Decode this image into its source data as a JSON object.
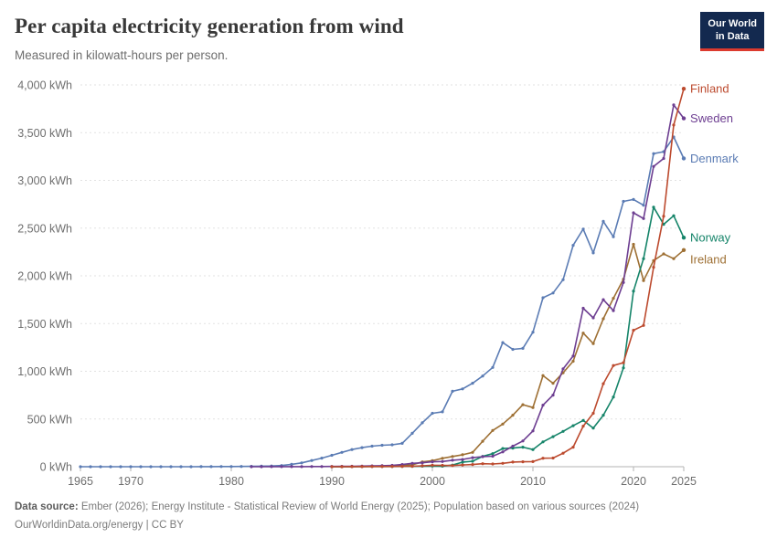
{
  "header": {
    "title": "Per capita electricity generation from wind",
    "subtitle": "Measured in kilowatt-hours per person.",
    "logo": {
      "line1": "Our World",
      "line2": "in Data"
    }
  },
  "footer": {
    "source_label": "Data source:",
    "source_text": " Ember (2026); Energy Institute - Statistical Review of World Energy (2025); Population based on various sources (2024)",
    "license_text": "OurWorldinData.org/energy | CC BY"
  },
  "colors": {
    "background": "#ffffff",
    "grid": "#e2e2e2",
    "axis": "#b3b3b3",
    "tick_label": "#6e6e6e",
    "title": "#383838",
    "logo_bg": "#13294f",
    "logo_stripe": "#dc3a2e"
  },
  "chart_data": {
    "type": "line",
    "title": "Per capita electricity generation from wind",
    "unit": "kWh per person",
    "legend_position": "end-of-line labels at right",
    "x_axis": {
      "range": [
        1965,
        2025
      ],
      "ticks": [
        1965,
        1970,
        1980,
        1990,
        2000,
        2010,
        2020,
        2025
      ]
    },
    "y_axis": {
      "range": [
        0,
        4000
      ],
      "ticks": [
        0,
        500,
        1000,
        1500,
        2000,
        2500,
        3000,
        3500,
        4000
      ],
      "tick_suffix": " kWh",
      "grid": "dashed"
    },
    "series": [
      {
        "name": "Finland",
        "color": "#bc4a2e",
        "label_offset_y": 0,
        "points": [
          [
            1990,
            0
          ],
          [
            1991,
            0
          ],
          [
            1992,
            1
          ],
          [
            1993,
            1
          ],
          [
            1994,
            2
          ],
          [
            1995,
            2
          ],
          [
            1996,
            3
          ],
          [
            1997,
            4
          ],
          [
            1998,
            5
          ],
          [
            1999,
            10
          ],
          [
            2000,
            15
          ],
          [
            2001,
            14
          ],
          [
            2002,
            12
          ],
          [
            2003,
            18
          ],
          [
            2004,
            23
          ],
          [
            2005,
            32
          ],
          [
            2006,
            29
          ],
          [
            2007,
            35
          ],
          [
            2008,
            49
          ],
          [
            2009,
            52
          ],
          [
            2010,
            54
          ],
          [
            2011,
            89
          ],
          [
            2012,
            91
          ],
          [
            2013,
            142
          ],
          [
            2014,
            205
          ],
          [
            2015,
            425
          ],
          [
            2016,
            560
          ],
          [
            2017,
            870
          ],
          [
            2018,
            1060
          ],
          [
            2019,
            1090
          ],
          [
            2020,
            1430
          ],
          [
            2021,
            1480
          ],
          [
            2022,
            2090
          ],
          [
            2023,
            2625
          ],
          [
            2024,
            3580
          ],
          [
            2025,
            3960
          ]
        ]
      },
      {
        "name": "Sweden",
        "color": "#6d3e91",
        "label_offset_y": 0,
        "points": [
          [
            1982,
            0
          ],
          [
            1983,
            0
          ],
          [
            1984,
            1
          ],
          [
            1985,
            1
          ],
          [
            1986,
            1
          ],
          [
            1987,
            1
          ],
          [
            1988,
            2
          ],
          [
            1989,
            2
          ],
          [
            1990,
            3
          ],
          [
            1991,
            4
          ],
          [
            1992,
            5
          ],
          [
            1993,
            7
          ],
          [
            1994,
            9
          ],
          [
            1995,
            11
          ],
          [
            1996,
            14
          ],
          [
            1997,
            23
          ],
          [
            1998,
            35
          ],
          [
            1999,
            41
          ],
          [
            2000,
            52
          ],
          [
            2001,
            55
          ],
          [
            2002,
            68
          ],
          [
            2003,
            76
          ],
          [
            2004,
            95
          ],
          [
            2005,
            105
          ],
          [
            2006,
            110
          ],
          [
            2007,
            155
          ],
          [
            2008,
            215
          ],
          [
            2009,
            270
          ],
          [
            2010,
            375
          ],
          [
            2011,
            645
          ],
          [
            2012,
            750
          ],
          [
            2013,
            1025
          ],
          [
            2014,
            1160
          ],
          [
            2015,
            1660
          ],
          [
            2016,
            1560
          ],
          [
            2017,
            1750
          ],
          [
            2018,
            1635
          ],
          [
            2019,
            1930
          ],
          [
            2020,
            2660
          ],
          [
            2021,
            2600
          ],
          [
            2022,
            3145
          ],
          [
            2023,
            3230
          ],
          [
            2024,
            3790
          ],
          [
            2025,
            3650
          ]
        ]
      },
      {
        "name": "Denmark",
        "color": "#5b7cb4",
        "label_offset_y": 0,
        "points": [
          [
            1965,
            0
          ],
          [
            1966,
            0
          ],
          [
            1967,
            0
          ],
          [
            1968,
            0
          ],
          [
            1969,
            0
          ],
          [
            1970,
            0
          ],
          [
            1971,
            0
          ],
          [
            1972,
            0
          ],
          [
            1973,
            0
          ],
          [
            1974,
            0
          ],
          [
            1975,
            0
          ],
          [
            1976,
            0
          ],
          [
            1977,
            1
          ],
          [
            1978,
            1
          ],
          [
            1979,
            2
          ],
          [
            1980,
            2
          ],
          [
            1981,
            3
          ],
          [
            1982,
            4
          ],
          [
            1983,
            6
          ],
          [
            1984,
            8
          ],
          [
            1985,
            12
          ],
          [
            1986,
            25
          ],
          [
            1987,
            40
          ],
          [
            1988,
            65
          ],
          [
            1989,
            90
          ],
          [
            1990,
            120
          ],
          [
            1991,
            150
          ],
          [
            1992,
            180
          ],
          [
            1993,
            200
          ],
          [
            1994,
            215
          ],
          [
            1995,
            225
          ],
          [
            1996,
            230
          ],
          [
            1997,
            245
          ],
          [
            1998,
            350
          ],
          [
            1999,
            460
          ],
          [
            2000,
            560
          ],
          [
            2001,
            575
          ],
          [
            2002,
            790
          ],
          [
            2003,
            815
          ],
          [
            2004,
            875
          ],
          [
            2005,
            950
          ],
          [
            2006,
            1040
          ],
          [
            2007,
            1300
          ],
          [
            2008,
            1230
          ],
          [
            2009,
            1240
          ],
          [
            2010,
            1410
          ],
          [
            2011,
            1770
          ],
          [
            2012,
            1820
          ],
          [
            2013,
            1960
          ],
          [
            2014,
            2320
          ],
          [
            2015,
            2490
          ],
          [
            2016,
            2240
          ],
          [
            2017,
            2570
          ],
          [
            2018,
            2410
          ],
          [
            2019,
            2780
          ],
          [
            2020,
            2800
          ],
          [
            2021,
            2740
          ],
          [
            2022,
            3280
          ],
          [
            2023,
            3300
          ],
          [
            2024,
            3455
          ],
          [
            2025,
            3230
          ]
        ]
      },
      {
        "name": "Norway",
        "color": "#158469",
        "label_offset_y": 0,
        "points": [
          [
            1990,
            0
          ],
          [
            1991,
            0
          ],
          [
            1992,
            1
          ],
          [
            1993,
            1
          ],
          [
            1994,
            2
          ],
          [
            1995,
            2
          ],
          [
            1996,
            2
          ],
          [
            1997,
            3
          ],
          [
            1998,
            4
          ],
          [
            1999,
            6
          ],
          [
            2000,
            7
          ],
          [
            2001,
            6
          ],
          [
            2002,
            17
          ],
          [
            2003,
            48
          ],
          [
            2004,
            57
          ],
          [
            2005,
            108
          ],
          [
            2006,
            137
          ],
          [
            2007,
            190
          ],
          [
            2008,
            195
          ],
          [
            2009,
            205
          ],
          [
            2010,
            180
          ],
          [
            2011,
            260
          ],
          [
            2012,
            315
          ],
          [
            2013,
            370
          ],
          [
            2014,
            430
          ],
          [
            2015,
            485
          ],
          [
            2016,
            405
          ],
          [
            2017,
            540
          ],
          [
            2018,
            730
          ],
          [
            2019,
            1035
          ],
          [
            2020,
            1840
          ],
          [
            2021,
            2180
          ],
          [
            2022,
            2720
          ],
          [
            2023,
            2540
          ],
          [
            2024,
            2630
          ],
          [
            2025,
            2400
          ]
        ]
      },
      {
        "name": "Ireland",
        "color": "#9e7034",
        "label_offset_y": 10,
        "points": [
          [
            1990,
            0
          ],
          [
            1991,
            0
          ],
          [
            1992,
            1
          ],
          [
            1993,
            4
          ],
          [
            1994,
            5
          ],
          [
            1995,
            4
          ],
          [
            1996,
            4
          ],
          [
            1997,
            14
          ],
          [
            1998,
            19
          ],
          [
            1999,
            51
          ],
          [
            2000,
            63
          ],
          [
            2001,
            88
          ],
          [
            2002,
            107
          ],
          [
            2003,
            125
          ],
          [
            2004,
            150
          ],
          [
            2005,
            267
          ],
          [
            2006,
            380
          ],
          [
            2007,
            447
          ],
          [
            2008,
            540
          ],
          [
            2009,
            650
          ],
          [
            2010,
            620
          ],
          [
            2011,
            955
          ],
          [
            2012,
            875
          ],
          [
            2013,
            985
          ],
          [
            2014,
            1105
          ],
          [
            2015,
            1400
          ],
          [
            2016,
            1290
          ],
          [
            2017,
            1550
          ],
          [
            2018,
            1765
          ],
          [
            2019,
            1965
          ],
          [
            2020,
            2330
          ],
          [
            2021,
            1950
          ],
          [
            2022,
            2160
          ],
          [
            2023,
            2230
          ],
          [
            2024,
            2180
          ],
          [
            2025,
            2270
          ]
        ]
      }
    ]
  }
}
